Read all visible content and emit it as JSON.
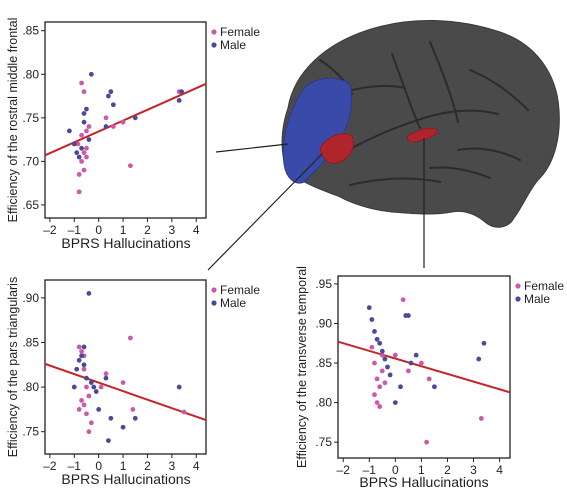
{
  "colors": {
    "female": "#cc5aa8",
    "male": "#4b4a9a",
    "fit": "#c4242a",
    "frame": "#231f20",
    "brain_gray": "#4a4a4a",
    "brain_blue": "#3a4aa8",
    "brain_red": "#b0242c"
  },
  "chart_data": [
    {
      "type": "scatter",
      "ylabel": "Efficiency of the rostral middle frontal",
      "xlabel": "BPRS Hallucinations",
      "xlim": [
        -2.2,
        4.4
      ],
      "ylim": [
        0.635,
        0.86
      ],
      "xticks": [
        -2,
        -1,
        0,
        1,
        2,
        3,
        4
      ],
      "yticks": [
        0.65,
        0.7,
        0.75,
        0.8,
        0.85
      ],
      "ytick_labels": [
        ".65",
        ".70",
        ".75",
        ".80",
        ".85"
      ],
      "legend": [
        "Female",
        "Male"
      ],
      "legend_position": "top-right",
      "fit_line": {
        "x": [
          -2.2,
          4.4
        ],
        "y": [
          0.707,
          0.789
        ]
      },
      "series": [
        {
          "name": "Female",
          "points": [
            [
              -0.8,
              0.665
            ],
            [
              -0.7,
              0.7
            ],
            [
              -0.6,
              0.71
            ],
            [
              -0.85,
              0.72
            ],
            [
              -0.5,
              0.715
            ],
            [
              -0.7,
              0.73
            ],
            [
              -0.6,
              0.69
            ],
            [
              -0.8,
              0.685
            ],
            [
              -0.5,
              0.735
            ],
            [
              -0.4,
              0.74
            ],
            [
              -0.6,
              0.78
            ],
            [
              -0.7,
              0.79
            ],
            [
              0.3,
              0.75
            ],
            [
              1.0,
              0.745
            ],
            [
              1.3,
              0.695
            ],
            [
              0.6,
              0.74
            ],
            [
              -0.5,
              0.705
            ],
            [
              3.3,
              0.78
            ]
          ]
        },
        {
          "name": "Male",
          "points": [
            [
              -1.2,
              0.735
            ],
            [
              -1.0,
              0.72
            ],
            [
              -0.9,
              0.71
            ],
            [
              -0.8,
              0.705
            ],
            [
              -0.7,
              0.715
            ],
            [
              -0.6,
              0.755
            ],
            [
              -0.5,
              0.76
            ],
            [
              -0.3,
              0.8
            ],
            [
              -0.4,
              0.725
            ],
            [
              -0.6,
              0.745
            ],
            [
              0.4,
              0.775
            ],
            [
              0.5,
              0.78
            ],
            [
              0.3,
              0.74
            ],
            [
              0.6,
              0.765
            ],
            [
              1.5,
              0.75
            ],
            [
              3.3,
              0.77
            ],
            [
              3.4,
              0.78
            ]
          ]
        }
      ]
    },
    {
      "type": "scatter",
      "ylabel": "Efficiency of the pars triangularis",
      "xlabel": "BPRS Hallucinations",
      "xlim": [
        -2.2,
        4.4
      ],
      "ylim": [
        0.725,
        0.92
      ],
      "xticks": [
        -2,
        -1,
        0,
        1,
        2,
        3,
        4
      ],
      "yticks": [
        0.75,
        0.8,
        0.85,
        0.9
      ],
      "ytick_labels": [
        ".75",
        ".80",
        ".85",
        ".90"
      ],
      "legend": [
        "Female",
        "Male"
      ],
      "legend_position": "top-right",
      "fit_line": {
        "x": [
          -2.2,
          4.4
        ],
        "y": [
          0.826,
          0.763
        ]
      },
      "series": [
        {
          "name": "Female",
          "points": [
            [
              -0.8,
              0.845
            ],
            [
              -0.7,
              0.84
            ],
            [
              -0.6,
              0.82
            ],
            [
              -0.5,
              0.8
            ],
            [
              -0.4,
              0.79
            ],
            [
              -0.7,
              0.785
            ],
            [
              -0.6,
              0.78
            ],
            [
              -0.5,
              0.77
            ],
            [
              -0.3,
              0.76
            ],
            [
              -0.8,
              0.775
            ],
            [
              -0.4,
              0.75
            ],
            [
              0.1,
              0.8
            ],
            [
              0.3,
              0.815
            ],
            [
              1.0,
              0.805
            ],
            [
              1.3,
              0.855
            ],
            [
              1.4,
              0.775
            ],
            [
              -0.6,
              0.835
            ],
            [
              3.5,
              0.772
            ]
          ]
        },
        {
          "name": "Male",
          "points": [
            [
              -1.0,
              0.8
            ],
            [
              -0.9,
              0.82
            ],
            [
              -0.8,
              0.83
            ],
            [
              -0.7,
              0.835
            ],
            [
              -0.6,
              0.825
            ],
            [
              -0.5,
              0.81
            ],
            [
              -0.4,
              0.905
            ],
            [
              -0.3,
              0.805
            ],
            [
              -0.2,
              0.8
            ],
            [
              -0.1,
              0.795
            ],
            [
              0.0,
              0.775
            ],
            [
              0.3,
              0.81
            ],
            [
              0.4,
              0.74
            ],
            [
              0.5,
              0.765
            ],
            [
              1.0,
              0.755
            ],
            [
              1.5,
              0.765
            ],
            [
              3.3,
              0.8
            ],
            [
              -0.6,
              0.845
            ]
          ]
        }
      ]
    },
    {
      "type": "scatter",
      "ylabel": "Efficiency of the transverse temporal",
      "xlabel": "BPRS Hallucinations",
      "xlim": [
        -2.2,
        4.4
      ],
      "ylim": [
        0.73,
        0.96
      ],
      "xticks": [
        -2,
        -1,
        0,
        1,
        2,
        3,
        4
      ],
      "yticks": [
        0.75,
        0.8,
        0.85,
        0.9,
        0.95
      ],
      "ytick_labels": [
        ".75",
        ".80",
        ".85",
        ".90",
        ".95"
      ],
      "legend": [
        "Female",
        "Male"
      ],
      "legend_position": "top-right",
      "fit_line": {
        "x": [
          -2.2,
          4.4
        ],
        "y": [
          0.877,
          0.813
        ]
      },
      "series": [
        {
          "name": "Female",
          "points": [
            [
              -0.9,
              0.87
            ],
            [
              -0.8,
              0.85
            ],
            [
              -0.7,
              0.83
            ],
            [
              -0.6,
              0.82
            ],
            [
              -0.5,
              0.86
            ],
            [
              -0.7,
              0.8
            ],
            [
              -0.6,
              0.795
            ],
            [
              -0.5,
              0.84
            ],
            [
              -0.4,
              0.825
            ],
            [
              0.0,
              0.86
            ],
            [
              0.3,
              0.93
            ],
            [
              0.5,
              0.84
            ],
            [
              1.0,
              0.85
            ],
            [
              1.2,
              0.75
            ],
            [
              1.3,
              0.83
            ],
            [
              3.3,
              0.78
            ],
            [
              -0.8,
              0.81
            ]
          ]
        },
        {
          "name": "Male",
          "points": [
            [
              -1.0,
              0.92
            ],
            [
              -0.9,
              0.905
            ],
            [
              -0.8,
              0.89
            ],
            [
              -0.7,
              0.88
            ],
            [
              -0.6,
              0.875
            ],
            [
              -0.5,
              0.865
            ],
            [
              -0.4,
              0.855
            ],
            [
              -0.3,
              0.845
            ],
            [
              -0.2,
              0.835
            ],
            [
              0.0,
              0.8
            ],
            [
              0.2,
              0.82
            ],
            [
              0.4,
              0.91
            ],
            [
              0.5,
              0.91
            ],
            [
              0.6,
              0.85
            ],
            [
              0.8,
              0.86
            ],
            [
              1.5,
              0.82
            ],
            [
              3.2,
              0.855
            ],
            [
              3.4,
              0.875
            ]
          ]
        }
      ]
    }
  ]
}
